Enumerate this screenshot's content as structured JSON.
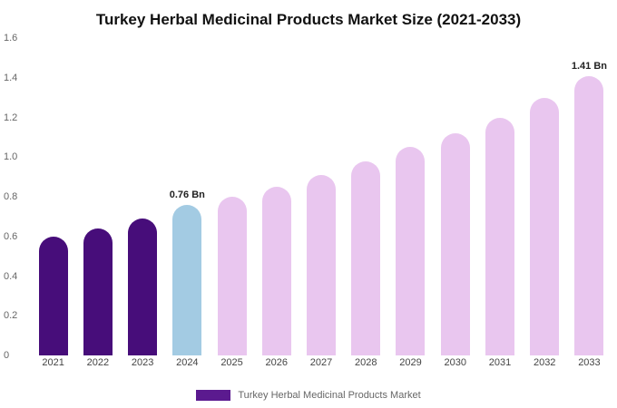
{
  "chart_data": {
    "type": "bar",
    "title": "Turkey Herbal Medicinal Products Market Size (2021-2033)",
    "categories": [
      "2021",
      "2022",
      "2023",
      "2024",
      "2025",
      "2026",
      "2027",
      "2028",
      "2029",
      "2030",
      "2031",
      "2032",
      "2033"
    ],
    "values": [
      0.6,
      0.64,
      0.69,
      0.76,
      0.8,
      0.85,
      0.91,
      0.98,
      1.05,
      1.12,
      1.2,
      1.3,
      1.41
    ],
    "bar_labels": {
      "2024": "0.76 Bn",
      "2033": "1.41 Bn"
    },
    "xlabel": "",
    "ylabel": "",
    "ylim": [
      0,
      1.6
    ],
    "yticks": [
      0,
      0.2,
      0.4,
      0.6,
      0.8,
      1.0,
      1.2,
      1.4,
      1.6
    ],
    "ytick_labels": [
      "0",
      "0.2",
      "0.4",
      "0.6",
      "0.8",
      "1.0",
      "1.2",
      "1.4",
      "1.6"
    ],
    "grid": false,
    "legend_position": "bottom",
    "colors": {
      "historical": "#470d7a",
      "current": "#a3cbe3",
      "forecast": "#e9c6ef"
    },
    "bar_colors": [
      "#470d7a",
      "#470d7a",
      "#470d7a",
      "#a3cbe3",
      "#e9c6ef",
      "#e9c6ef",
      "#e9c6ef",
      "#e9c6ef",
      "#e9c6ef",
      "#e9c6ef",
      "#e9c6ef",
      "#e9c6ef",
      "#e9c6ef"
    ],
    "legend": {
      "label": "Turkey Herbal Medicinal Products Market",
      "color": "#5b1a8f"
    }
  }
}
